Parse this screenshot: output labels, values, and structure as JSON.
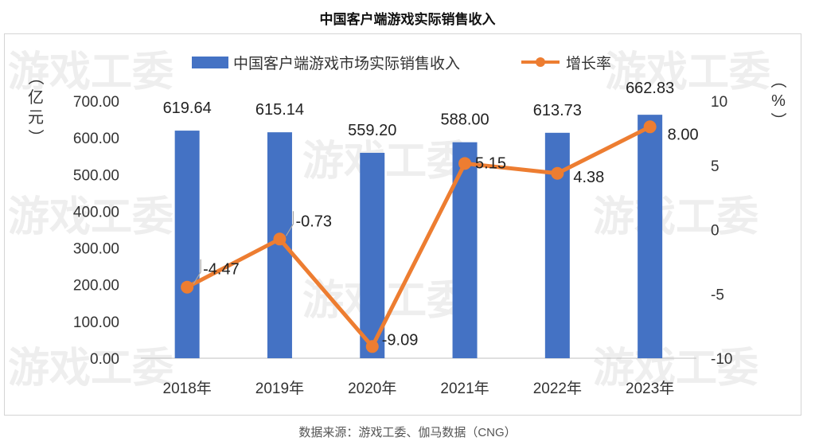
{
  "title": "中国客户端游戏实际销售收入",
  "source": "数据来源：游戏工委、伽马数据（CNG）",
  "watermark": "游戏工委",
  "colors": {
    "bar": "#4472c4",
    "line": "#ed7d31",
    "axis_text": "#333333",
    "label_text": "#222222",
    "leader": "#a6a6a6"
  },
  "chart_data": {
    "type": "bar",
    "categories": [
      "2018年",
      "2019年",
      "2020年",
      "2021年",
      "2022年",
      "2023年"
    ],
    "series": [
      {
        "name": "中国客户端游戏市场实际销售收入",
        "type": "bar",
        "axis": "left",
        "values": [
          619.64,
          615.14,
          559.2,
          588.0,
          613.73,
          662.83
        ],
        "labels": [
          "619.64",
          "615.14",
          "559.20",
          "588.00",
          "613.73",
          "662.83"
        ]
      },
      {
        "name": "增长率",
        "type": "line",
        "axis": "right",
        "values": [
          -4.47,
          -0.73,
          -9.09,
          5.15,
          4.38,
          8.0
        ],
        "labels": [
          "-4.47",
          "-0.73",
          "-9.09",
          "5.15",
          "4.38",
          "8.00"
        ]
      }
    ],
    "ylim_left": [
      0,
      700
    ],
    "yticks_left": [
      "0.00",
      "100.00",
      "200.00",
      "300.00",
      "400.00",
      "500.00",
      "600.00",
      "700.00"
    ],
    "ylabel_left": "（亿元）",
    "ylim_right": [
      -10,
      10
    ],
    "yticks_right": [
      "-10",
      "-5",
      "0",
      "5",
      "10"
    ],
    "ylabel_right": "（%）",
    "legend_position": "top",
    "grid": false
  }
}
